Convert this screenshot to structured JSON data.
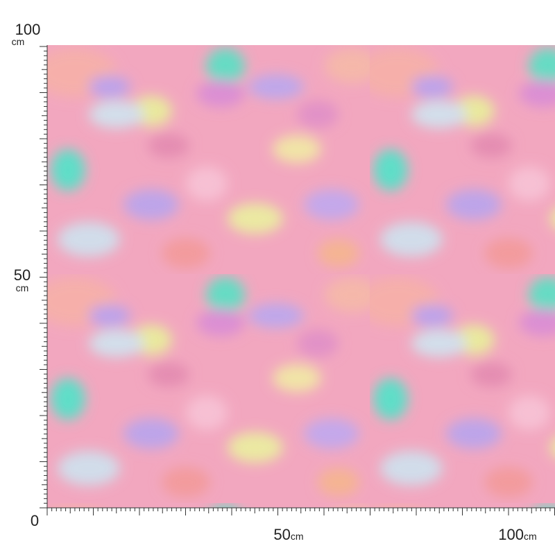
{
  "vertical_ruler": {
    "labels": [
      {
        "number": "100",
        "unit": "cm"
      },
      {
        "number": "50",
        "unit": "cm"
      },
      {
        "number": "0"
      }
    ]
  },
  "horizontal_ruler": {
    "labels": [
      {
        "number": "50",
        "unit": "cm"
      },
      {
        "number": "100",
        "unit": "cm"
      }
    ]
  }
}
